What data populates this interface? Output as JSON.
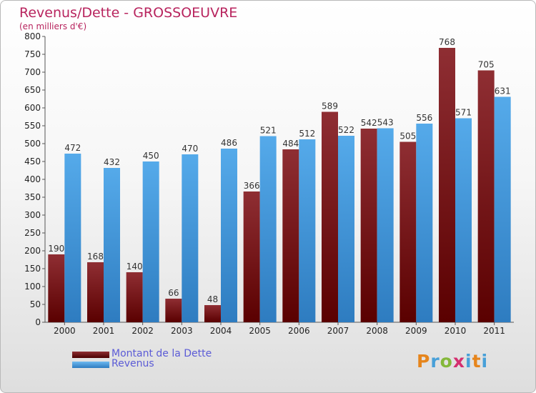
{
  "title": "Revenus/Dette - GROSSOEUVRE",
  "subtitle": "(en milliers d'€)",
  "colors": {
    "debt": "#6e1016",
    "revenue": "#3a8fd6",
    "title": "#b8245e"
  },
  "logo": "Proxiti",
  "chart_data": {
    "type": "bar",
    "categories": [
      "2000",
      "2001",
      "2002",
      "2003",
      "2004",
      "2005",
      "2006",
      "2007",
      "2008",
      "2009",
      "2010",
      "2011"
    ],
    "series": [
      {
        "name": "Montant de la Dette",
        "values": [
          190,
          168,
          140,
          66,
          48,
          366,
          484,
          589,
          542,
          505,
          768,
          705
        ]
      },
      {
        "name": "Revenus",
        "values": [
          472,
          432,
          450,
          470,
          486,
          521,
          512,
          522,
          543,
          556,
          571,
          631
        ]
      }
    ],
    "ylim": [
      0,
      800
    ],
    "yticks": [
      0,
      50,
      100,
      150,
      200,
      250,
      300,
      350,
      400,
      450,
      500,
      550,
      600,
      650,
      700,
      750,
      800
    ],
    "grid": false,
    "legend": "bottom-left"
  }
}
